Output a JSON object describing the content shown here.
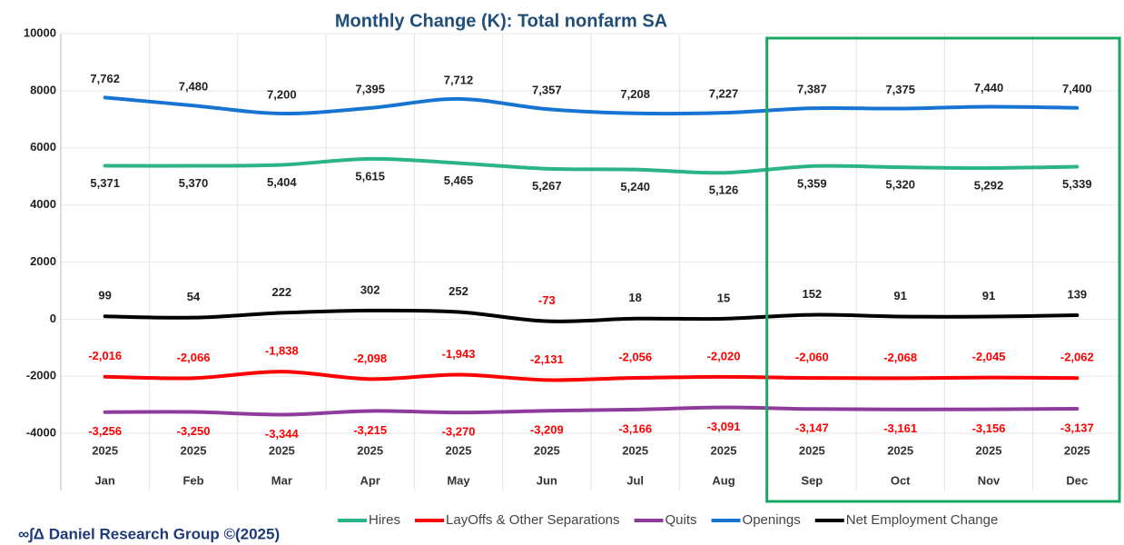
{
  "chart_data": {
    "type": "line",
    "title": "Monthly Change (K): Total nonfarm SA",
    "categories": [
      "Jan",
      "Feb",
      "Mar",
      "Apr",
      "May",
      "Jun",
      "Jul",
      "Aug",
      "Sep",
      "Oct",
      "Nov",
      "Dec"
    ],
    "category_years": [
      "2025",
      "2025",
      "2025",
      "2025",
      "2025",
      "2025",
      "2025",
      "2025",
      "2025",
      "2025",
      "2025",
      "2025"
    ],
    "ylim": [
      -6000,
      10000
    ],
    "yticks": [
      -4000,
      -2000,
      0,
      2000,
      4000,
      6000,
      8000,
      10000
    ],
    "grid": true,
    "legend": "bottom",
    "source": "∞∫Δ Daniel Research Group ©(2025)",
    "series": [
      {
        "name": "Hires",
        "color": "#2bb38a",
        "values": [
          5371,
          5370,
          5404,
          5615,
          5465,
          5267,
          5240,
          5126,
          5359,
          5320,
          5292,
          5339
        ],
        "value_labels": [
          "5,371",
          "5,370",
          "5,404",
          "5,615",
          "5,465",
          "5,267",
          "5,240",
          "5,126",
          "5,359",
          "5,320",
          "5,292",
          "5,339"
        ]
      },
      {
        "name": "LayOffs & Other Separations",
        "color": "#ff0000",
        "values": [
          -2016,
          -2066,
          -1838,
          -2098,
          -1943,
          -2131,
          -2056,
          -2020,
          -2060,
          -2068,
          -2045,
          -2062
        ],
        "value_labels": [
          "-2,016",
          "-2,066",
          "-1,838",
          "-2,098",
          "-1,943",
          "-2,131",
          "-2,056",
          "-2,020",
          "-2,060",
          "-2,068",
          "-2,045",
          "-2,062"
        ]
      },
      {
        "name": "Quits",
        "color": "#8e3b9c",
        "values": [
          -3256,
          -3250,
          -3344,
          -3215,
          -3270,
          -3209,
          -3166,
          -3091,
          -3147,
          -3161,
          -3156,
          -3137
        ],
        "value_labels": [
          "-3,256",
          "-3,250",
          "-3,344",
          "-3,215",
          "-3,270",
          "-3,209",
          "-3,166",
          "-3,091",
          "-3,147",
          "-3,161",
          "-3,156",
          "-3,137"
        ]
      },
      {
        "name": "Openings",
        "color": "#1874d2",
        "values": [
          7762,
          7480,
          7200,
          7395,
          7712,
          7357,
          7208,
          7227,
          7387,
          7375,
          7440,
          7400
        ],
        "value_labels": [
          "7,762",
          "7,480",
          "7,200",
          "7,395",
          "7,712",
          "7,357",
          "7,208",
          "7,227",
          "7,387",
          "7,375",
          "7,440",
          "7,400"
        ]
      },
      {
        "name": "Net Employment Change",
        "color": "#000000",
        "values": [
          99,
          54,
          222,
          302,
          252,
          -73,
          18,
          15,
          152,
          91,
          91,
          139
        ]
      }
    ]
  }
}
